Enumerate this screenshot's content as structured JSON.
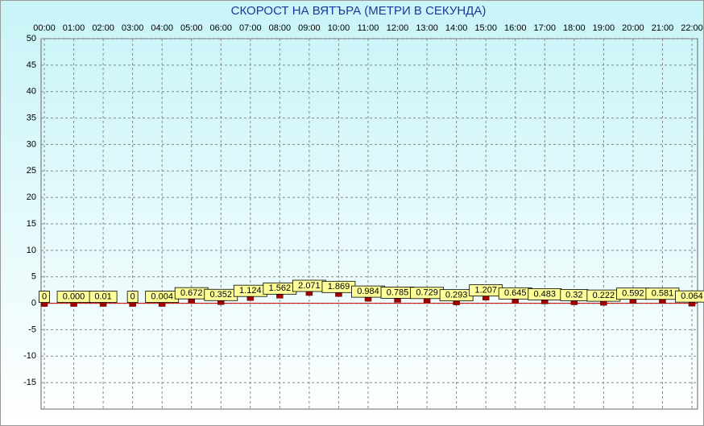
{
  "chart_data": {
    "type": "scatter",
    "title": "СКОРОСТ НА ВЯТЪРА (МЕТРИ В СЕКУНДА)",
    "categories": [
      "00:00",
      "01:00",
      "02:00",
      "03:00",
      "04:00",
      "05:00",
      "06:00",
      "07:00",
      "08:00",
      "09:00",
      "10:00",
      "11:00",
      "12:00",
      "13:00",
      "14:00",
      "15:00",
      "16:00",
      "17:00",
      "18:00",
      "19:00",
      "20:00",
      "21:00",
      "22:00"
    ],
    "values": [
      0,
      0,
      0.01,
      0,
      0.004,
      0.672,
      0.352,
      1.124,
      1.562,
      2.071,
      1.869,
      0.984,
      0.785,
      0.729,
      0.293,
      1.207,
      0.645,
      0.483,
      0.32,
      0.222,
      0.592,
      0.581,
      0.064
    ],
    "value_labels": [
      "0",
      "0.000",
      "0.01",
      "0",
      "0.004",
      "0.672",
      "0.352",
      "1.124",
      "1.562",
      "2.071",
      "1.869",
      "0.984",
      "0.785",
      "0.729",
      "0.293",
      "1.207",
      "0.645",
      "0.483",
      "0.32",
      "0.222",
      "0.592",
      "0.581",
      "0.064"
    ],
    "color": "#a00000",
    "ylim": [
      -20,
      50
    ],
    "yticks": [
      50,
      45,
      40,
      35,
      30,
      25,
      20,
      15,
      10,
      5,
      0,
      -5,
      -10,
      -15
    ],
    "grid": true
  }
}
